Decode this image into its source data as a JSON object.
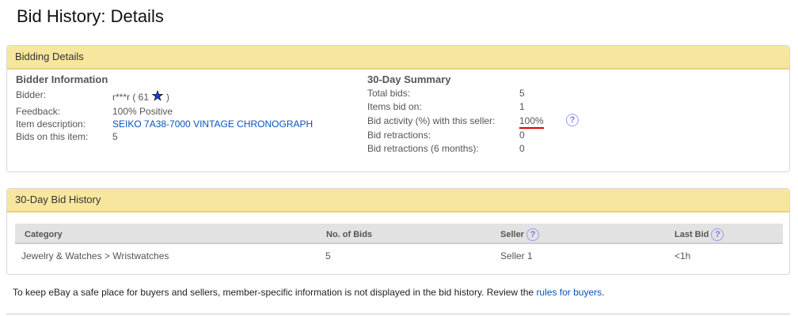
{
  "page": {
    "title": "Bid History: Details"
  },
  "bidding_details": {
    "header": "Bidding Details",
    "bidder_info": {
      "heading": "Bidder Information",
      "bidder_label": "Bidder:",
      "bidder_value": "r***r ( 61",
      "bidder_close": ")",
      "star_icon": "blue-star-icon",
      "star_color": "#1a3fd6",
      "feedback_label": "Feedback:",
      "feedback_value": "100% Positive",
      "item_label": "Item description:",
      "item_value": "SEIKO 7A38-7000 VINTAGE CHRONOGRAPH",
      "bids_label": "Bids on this item:",
      "bids_value": "5"
    },
    "summary": {
      "heading": "30-Day Summary",
      "rows": [
        {
          "label": "Total bids:",
          "value": "5"
        },
        {
          "label": "Items bid on:",
          "value": "1"
        },
        {
          "label": "Bid activity (%) with this seller:",
          "value": "100%"
        },
        {
          "label": "Bid retractions:",
          "value": "0"
        },
        {
          "label": "Bid retractions (6 months):",
          "value": "0"
        }
      ]
    }
  },
  "history": {
    "header": "30-Day Bid History",
    "columns": [
      "Category",
      "No. of Bids",
      "Seller",
      "Last Bid"
    ],
    "rows": [
      [
        "Jewelry & Watches > Wristwatches",
        "5",
        "Seller 1",
        "<1h"
      ]
    ]
  },
  "footer": {
    "text": "To keep eBay a safe place for buyers and sellers, member-specific information is not displayed in the bid history. Review the ",
    "link": "rules for buyers",
    "end": "."
  },
  "help_glyph": "?",
  "colors": {
    "header_bg": "#f7e69e",
    "link": "#0654ba",
    "underline": "#e00000"
  }
}
